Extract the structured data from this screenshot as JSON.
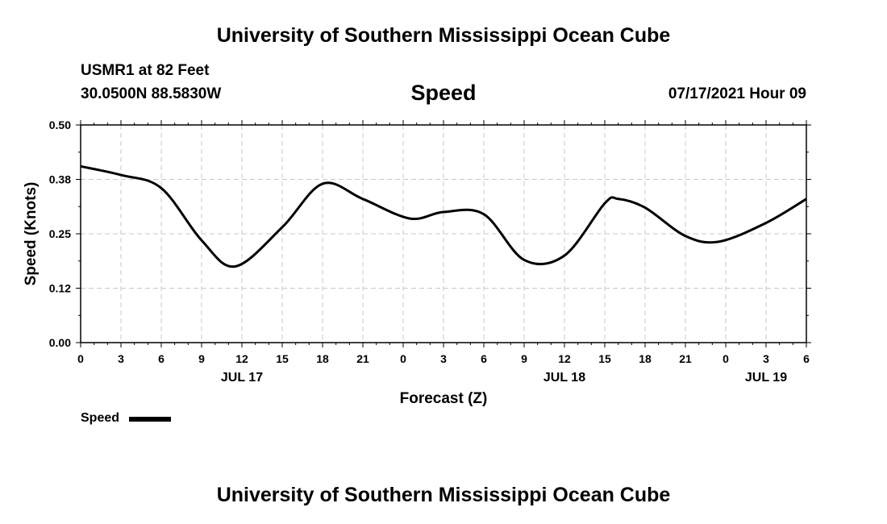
{
  "header": {
    "title": "University of Southern Mississippi Ocean Cube",
    "station": "USMR1 at 82 Feet",
    "coords": "30.0500N  88.5830W",
    "plot_title": "Speed",
    "timestamp": "07/17/2021 Hour 09"
  },
  "footer": {
    "title": "University of Southern Mississippi Ocean Cube"
  },
  "legend": {
    "label": "Speed"
  },
  "colors": {
    "line": "#000000",
    "grid": "#c8c8c8",
    "background": "#ffffff"
  },
  "chart_data": {
    "type": "line",
    "xlabel": "Forecast (Z)",
    "ylabel": "Speed (Knots)",
    "xlim": [
      0,
      54
    ],
    "ylim": [
      0,
      0.5
    ],
    "grid": true,
    "y_ticks": [
      "0.00",
      "0.12",
      "0.25",
      "0.38",
      "0.50"
    ],
    "x_ticks": [
      "0",
      "3",
      "6",
      "9",
      "12",
      "15",
      "18",
      "21",
      "0",
      "3",
      "6",
      "9",
      "12",
      "15",
      "18",
      "21",
      "0",
      "3",
      "6"
    ],
    "date_labels": [
      {
        "label": "JUL 17",
        "hour": 12
      },
      {
        "label": "JUL 18",
        "hour": 36
      },
      {
        "label": "JUL 19",
        "hour": 51
      }
    ],
    "series": [
      {
        "name": "Speed",
        "x": [
          0,
          3,
          6,
          9,
          11.5,
          15,
          18,
          21,
          24.5,
          27,
          30,
          33,
          36,
          39,
          40,
          42,
          45,
          47.5,
          51,
          54
        ],
        "y": [
          0.405,
          0.385,
          0.355,
          0.235,
          0.175,
          0.265,
          0.365,
          0.33,
          0.285,
          0.3,
          0.295,
          0.19,
          0.2,
          0.32,
          0.33,
          0.31,
          0.245,
          0.232,
          0.275,
          0.33
        ]
      }
    ]
  }
}
